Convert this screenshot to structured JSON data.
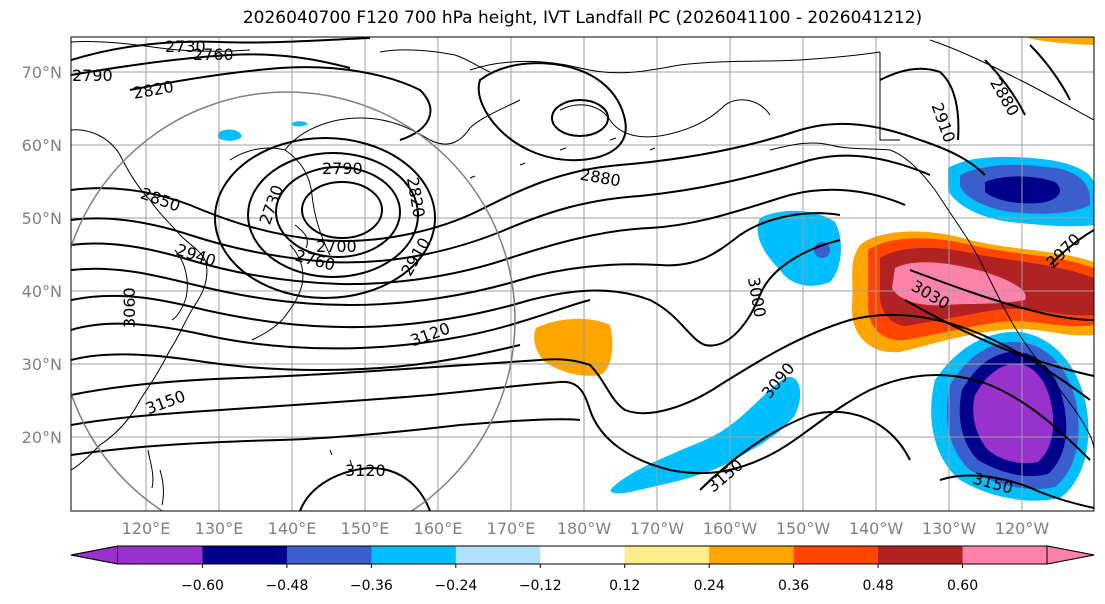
{
  "title": "2026040700 F120 700 hPa height, IVT Landfall PC (2026041100 - 2026041212)",
  "lat_labels": [
    "70°N",
    "60°N",
    "50°N",
    "40°N",
    "30°N",
    "20°N"
  ],
  "lon_labels": [
    "120°E",
    "130°E",
    "140°E",
    "150°E",
    "160°E",
    "170°E",
    "180°W",
    "170°W",
    "160°W",
    "150°W",
    "140°W",
    "130°W",
    "120°W"
  ],
  "contour_labels": [
    "2730",
    "2760",
    "2790",
    "2820",
    "2850",
    "2940",
    "2790",
    "2820",
    "2730",
    "2700",
    "2760",
    "2910",
    "2880",
    "2910",
    "2880",
    "2970",
    "3000",
    "3030",
    "3090",
    "3120",
    "3150",
    "3060",
    "3150",
    "3120",
    "3150"
  ],
  "colorbar": {
    "colors": [
      "#9932CC",
      "#00008B",
      "#3A5FCD",
      "#00BFFF",
      "#B0E2FF",
      "#FFFFFF",
      "#FFEC8B",
      "#FFA500",
      "#FF4500",
      "#B22222",
      "#FF82AB"
    ],
    "ticks": [
      "−0.60",
      "−0.48",
      "−0.36",
      "−0.24",
      "−0.12",
      "0.12",
      "0.24",
      "0.36",
      "0.48",
      "0.60"
    ]
  }
}
